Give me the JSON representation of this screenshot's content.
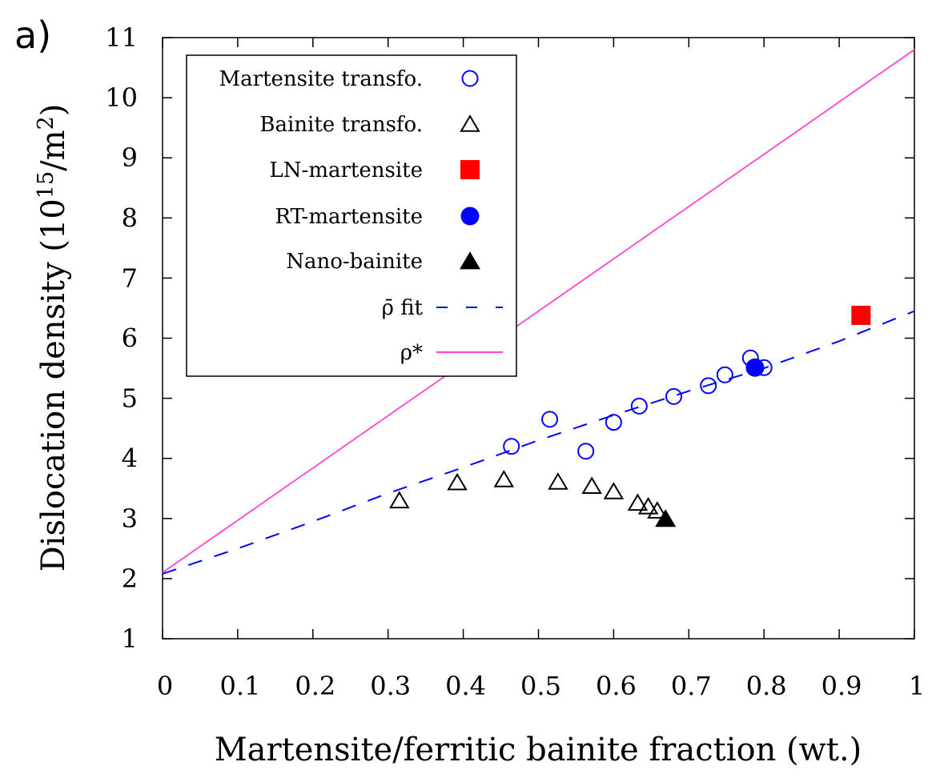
{
  "chart_data": {
    "type": "scatter",
    "panel_label": "a)",
    "xlabel": "Martensite/ferritic bainite fraction (wt.)",
    "ylabel": "Dislocation density (10",
    "ylabel_sup": "15",
    "ylabel_unit": "/m",
    "ylabel_sup2": "2",
    "ylabel_close": ")",
    "xlim": [
      0,
      1
    ],
    "ylim": [
      1,
      11
    ],
    "xticks": [
      "0",
      "0.1",
      "0.2",
      "0.3",
      "0.4",
      "0.5",
      "0.6",
      "0.7",
      "0.8",
      "0.9",
      "1"
    ],
    "yticks": [
      "1",
      "2",
      "3",
      "4",
      "5",
      "6",
      "7",
      "8",
      "9",
      "10",
      "11"
    ],
    "grid": false,
    "legend_placement": "top-left",
    "series": [
      {
        "name": "Martensite transfo.",
        "marker": "open-circle",
        "color": "#0000ff",
        "x": [
          0.464,
          0.515,
          0.563,
          0.6,
          0.634,
          0.68,
          0.726,
          0.748,
          0.782,
          0.8
        ],
        "y": [
          4.2,
          4.65,
          4.12,
          4.6,
          4.87,
          5.03,
          5.21,
          5.39,
          5.67,
          5.51
        ]
      },
      {
        "name": "Bainite transfo.",
        "marker": "open-triangle",
        "color": "#000000",
        "x": [
          0.315,
          0.392,
          0.454,
          0.526,
          0.571,
          0.6,
          0.632,
          0.646,
          0.658
        ],
        "y": [
          3.3,
          3.6,
          3.65,
          3.61,
          3.54,
          3.45,
          3.26,
          3.2,
          3.13
        ]
      },
      {
        "name": "LN-martensite",
        "marker": "filled-square",
        "color": "#ff0000",
        "x": [
          0.929
        ],
        "y": [
          6.38
        ]
      },
      {
        "name": "RT-martensite",
        "marker": "filled-circle",
        "color": "#0000ff",
        "x": [
          0.788
        ],
        "y": [
          5.51
        ]
      },
      {
        "name": "Nano-bainite",
        "marker": "filled-triangle",
        "color": "#000000",
        "x": [
          0.669
        ],
        "y": [
          3.0
        ]
      },
      {
        "name": "ρ̄ fit",
        "line": "dashed",
        "color": "#0000ff",
        "x": [
          0,
          0.1,
          0.2,
          0.3,
          0.4,
          0.5,
          0.6,
          0.7,
          0.8,
          0.9,
          1
        ],
        "y": [
          2.08,
          2.5,
          2.95,
          3.42,
          3.85,
          4.3,
          4.72,
          5.12,
          5.5,
          5.95,
          6.45
        ]
      },
      {
        "name": "ρ*",
        "line": "solid",
        "color": "#ff44cc",
        "x": [
          0,
          1
        ],
        "y": [
          2.1,
          10.8
        ]
      }
    ]
  }
}
